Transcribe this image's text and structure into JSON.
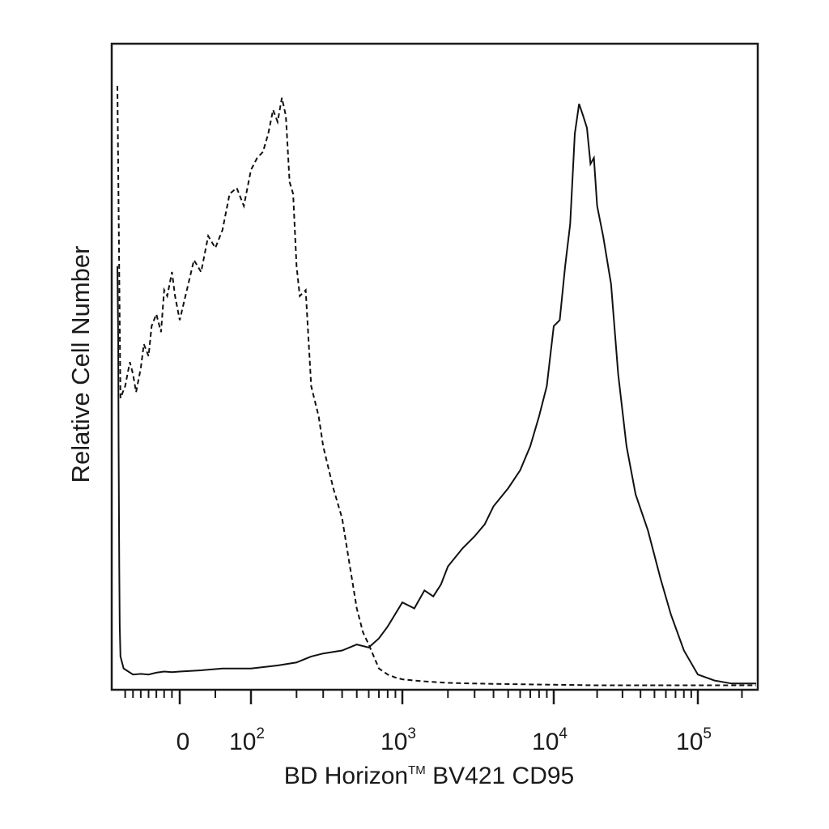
{
  "chart_data": {
    "type": "line",
    "title": "",
    "xlabel": "BD Horizon™ BV421 CD95",
    "xlabel_main": "BD Horizon",
    "xlabel_tm": "TM",
    "xlabel_rest": " BV421 CD95",
    "ylabel": "Relative Cell Number",
    "x_scale": "biexponential",
    "xlim": [
      -400,
      250000
    ],
    "ylim": [
      0,
      100
    ],
    "grid": false,
    "legend": "none",
    "x_ticks": [
      {
        "value": 0,
        "base": "0",
        "exp": ""
      },
      {
        "value": 100,
        "base": "10",
        "exp": "2"
      },
      {
        "value": 1000,
        "base": "10",
        "exp": "3"
      },
      {
        "value": 10000,
        "base": "10",
        "exp": "4"
      },
      {
        "value": 100000,
        "base": "10",
        "exp": "5"
      }
    ],
    "series": [
      {
        "style": "dashed",
        "color": "#111111",
        "x": [
          -400,
          -380,
          -350,
          -320,
          -300,
          -280,
          -250,
          -230,
          -200,
          -180,
          -150,
          -120,
          -100,
          -80,
          -50,
          -30,
          0,
          20,
          30,
          40,
          50,
          60,
          70,
          80,
          90,
          100,
          110,
          120,
          130,
          140,
          150,
          160,
          170,
          180,
          190,
          200,
          210,
          230,
          250,
          280,
          300,
          350,
          400,
          450,
          500,
          550,
          600,
          700,
          800,
          900,
          1000,
          1200,
          1500,
          2000,
          3000,
          5000,
          10000,
          20000,
          50000,
          100000,
          250000
        ],
        "values": [
          100,
          48,
          50,
          54,
          52,
          49,
          53,
          57,
          55,
          60,
          62,
          59,
          66,
          65,
          69,
          65,
          61,
          71,
          69,
          75,
          73,
          76,
          82,
          83,
          80,
          86,
          88,
          89,
          92,
          96,
          94,
          98,
          95,
          84,
          82,
          70,
          65,
          66,
          50,
          45,
          40,
          33,
          28,
          20,
          13,
          9,
          7,
          3,
          2,
          1.5,
          1.2,
          1,
          0.8,
          0.6,
          0.5,
          0.4,
          0.3,
          0.2,
          0.2,
          0.2,
          0.2
        ]
      },
      {
        "style": "solid",
        "color": "#111111",
        "x": [
          -400,
          -395,
          -392,
          -390,
          -388,
          -385,
          -380,
          -360,
          -300,
          -250,
          -200,
          -150,
          -100,
          -50,
          0,
          30,
          60,
          100,
          150,
          200,
          250,
          300,
          400,
          500,
          600,
          700,
          800,
          1000,
          1200,
          1400,
          1600,
          1800,
          2000,
          2500,
          3000,
          3500,
          4000,
          5000,
          6000,
          7000,
          8000,
          9000,
          10000,
          11000,
          12000,
          13000,
          14000,
          15000,
          16000,
          17000,
          18000,
          19000,
          20000,
          22000,
          25000,
          28000,
          32000,
          37000,
          45000,
          55000,
          65000,
          80000,
          100000,
          130000,
          170000,
          250000
        ],
        "values": [
          70,
          58,
          40,
          30,
          20,
          10,
          5,
          3,
          2,
          2.1,
          2,
          2.3,
          2.5,
          2.4,
          2.5,
          2.7,
          3,
          3,
          3.5,
          4,
          5,
          5.5,
          6,
          7,
          6.5,
          8,
          10,
          14,
          13,
          16,
          15,
          17,
          20,
          23,
          25,
          27,
          30,
          33,
          36,
          40,
          45,
          50,
          60,
          61,
          70,
          77,
          92,
          97,
          95,
          93,
          87,
          88,
          80,
          75,
          67,
          52,
          40,
          32,
          26,
          18,
          12,
          6,
          2,
          1,
          0.5,
          0.5
        ]
      }
    ]
  }
}
